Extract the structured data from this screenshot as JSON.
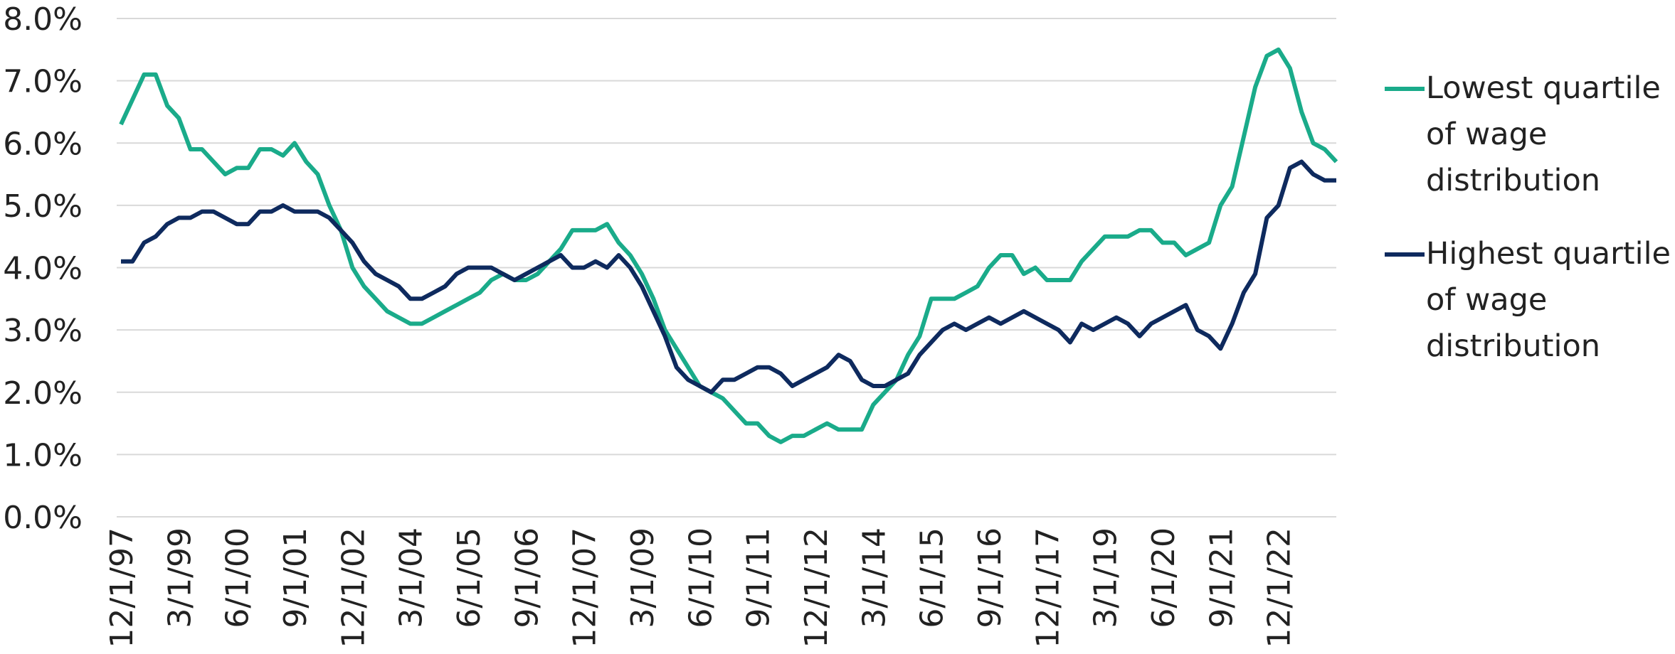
{
  "chart_data": {
    "type": "line",
    "categories": [
      "12/1/97",
      null,
      null,
      null,
      null,
      "3/1/99",
      null,
      null,
      null,
      null,
      "6/1/00",
      null,
      null,
      null,
      null,
      "9/1/01",
      null,
      null,
      null,
      null,
      "12/1/02",
      null,
      null,
      null,
      null,
      "3/1/04",
      null,
      null,
      null,
      null,
      "6/1/05",
      null,
      null,
      null,
      null,
      "9/1/06",
      null,
      null,
      null,
      null,
      "12/1/07",
      null,
      null,
      null,
      null,
      "3/1/09",
      null,
      null,
      null,
      null,
      "6/1/10",
      null,
      null,
      null,
      null,
      "9/1/11",
      null,
      null,
      null,
      null,
      "12/1/12",
      null,
      null,
      null,
      null,
      "3/1/14",
      null,
      null,
      null,
      null,
      "6/1/15",
      null,
      null,
      null,
      null,
      "9/1/16",
      null,
      null,
      null,
      null,
      "12/1/17",
      null,
      null,
      null,
      null,
      "3/1/19",
      null,
      null,
      null,
      null,
      "6/1/20",
      null,
      null,
      null,
      null,
      "9/1/21",
      null,
      null,
      null,
      null,
      "12/1/22",
      null,
      null,
      null,
      null,
      null
    ],
    "series": [
      {
        "name": "Lowest quartile of wage distribution",
        "color": "#1aab8a",
        "values": [
          6.3,
          6.7,
          7.1,
          7.1,
          6.6,
          6.4,
          5.9,
          5.9,
          5.7,
          5.5,
          5.6,
          5.6,
          5.9,
          5.9,
          5.8,
          6.0,
          5.7,
          5.5,
          5.0,
          4.6,
          4.0,
          3.7,
          3.5,
          3.3,
          3.2,
          3.1,
          3.1,
          3.2,
          3.3,
          3.4,
          3.5,
          3.6,
          3.8,
          3.9,
          3.8,
          3.8,
          3.9,
          4.1,
          4.3,
          4.6,
          4.6,
          4.6,
          4.7,
          4.4,
          4.2,
          3.9,
          3.5,
          3.0,
          2.7,
          2.4,
          2.1,
          2.0,
          1.9,
          1.7,
          1.5,
          1.5,
          1.3,
          1.2,
          1.3,
          1.3,
          1.4,
          1.5,
          1.4,
          1.4,
          1.4,
          1.8,
          2.0,
          2.2,
          2.6,
          2.9,
          3.5,
          3.5,
          3.5,
          3.6,
          3.7,
          4.0,
          4.2,
          4.2,
          3.9,
          4.0,
          3.8,
          3.8,
          3.8,
          4.1,
          4.3,
          4.5,
          4.5,
          4.5,
          4.6,
          4.6,
          4.4,
          4.4,
          4.2,
          4.3,
          4.4,
          5.0,
          5.3,
          6.1,
          6.9,
          7.4,
          7.5,
          7.2,
          6.5,
          6.0,
          5.9,
          5.7
        ]
      },
      {
        "name": "Highest quartile of wage distribution",
        "color": "#0e2a5e",
        "values": [
          4.1,
          4.1,
          4.4,
          4.5,
          4.7,
          4.8,
          4.8,
          4.9,
          4.9,
          4.8,
          4.7,
          4.7,
          4.9,
          4.9,
          5.0,
          4.9,
          4.9,
          4.9,
          4.8,
          4.6,
          4.4,
          4.1,
          3.9,
          3.8,
          3.7,
          3.5,
          3.5,
          3.6,
          3.7,
          3.9,
          4.0,
          4.0,
          4.0,
          3.9,
          3.8,
          3.9,
          4.0,
          4.1,
          4.2,
          4.0,
          4.0,
          4.1,
          4.0,
          4.2,
          4.0,
          3.7,
          3.3,
          2.9,
          2.4,
          2.2,
          2.1,
          2.0,
          2.2,
          2.2,
          2.3,
          2.4,
          2.4,
          2.3,
          2.1,
          2.2,
          2.3,
          2.4,
          2.6,
          2.5,
          2.2,
          2.1,
          2.1,
          2.2,
          2.3,
          2.6,
          2.8,
          3.0,
          3.1,
          3.0,
          3.1,
          3.2,
          3.1,
          3.2,
          3.3,
          3.2,
          3.1,
          3.0,
          2.8,
          3.1,
          3.0,
          3.1,
          3.2,
          3.1,
          2.9,
          3.1,
          3.2,
          3.3,
          3.4,
          3.0,
          2.9,
          2.7,
          3.1,
          3.6,
          3.9,
          4.8,
          5.0,
          5.6,
          5.7,
          5.5,
          5.4,
          5.4
        ]
      }
    ],
    "ylim": [
      0,
      8
    ],
    "yticks": [
      {
        "value": 0,
        "label": "0.0%"
      },
      {
        "value": 1,
        "label": "1.0%"
      },
      {
        "value": 2,
        "label": "2.0%"
      },
      {
        "value": 3,
        "label": "3.0%"
      },
      {
        "value": 4,
        "label": "4.0%"
      },
      {
        "value": 5,
        "label": "5.0%"
      },
      {
        "value": 6,
        "label": "6.0%"
      },
      {
        "value": 7,
        "label": "7.0%"
      },
      {
        "value": 8,
        "label": "8.0%"
      }
    ],
    "grid": true,
    "legend": "right"
  }
}
